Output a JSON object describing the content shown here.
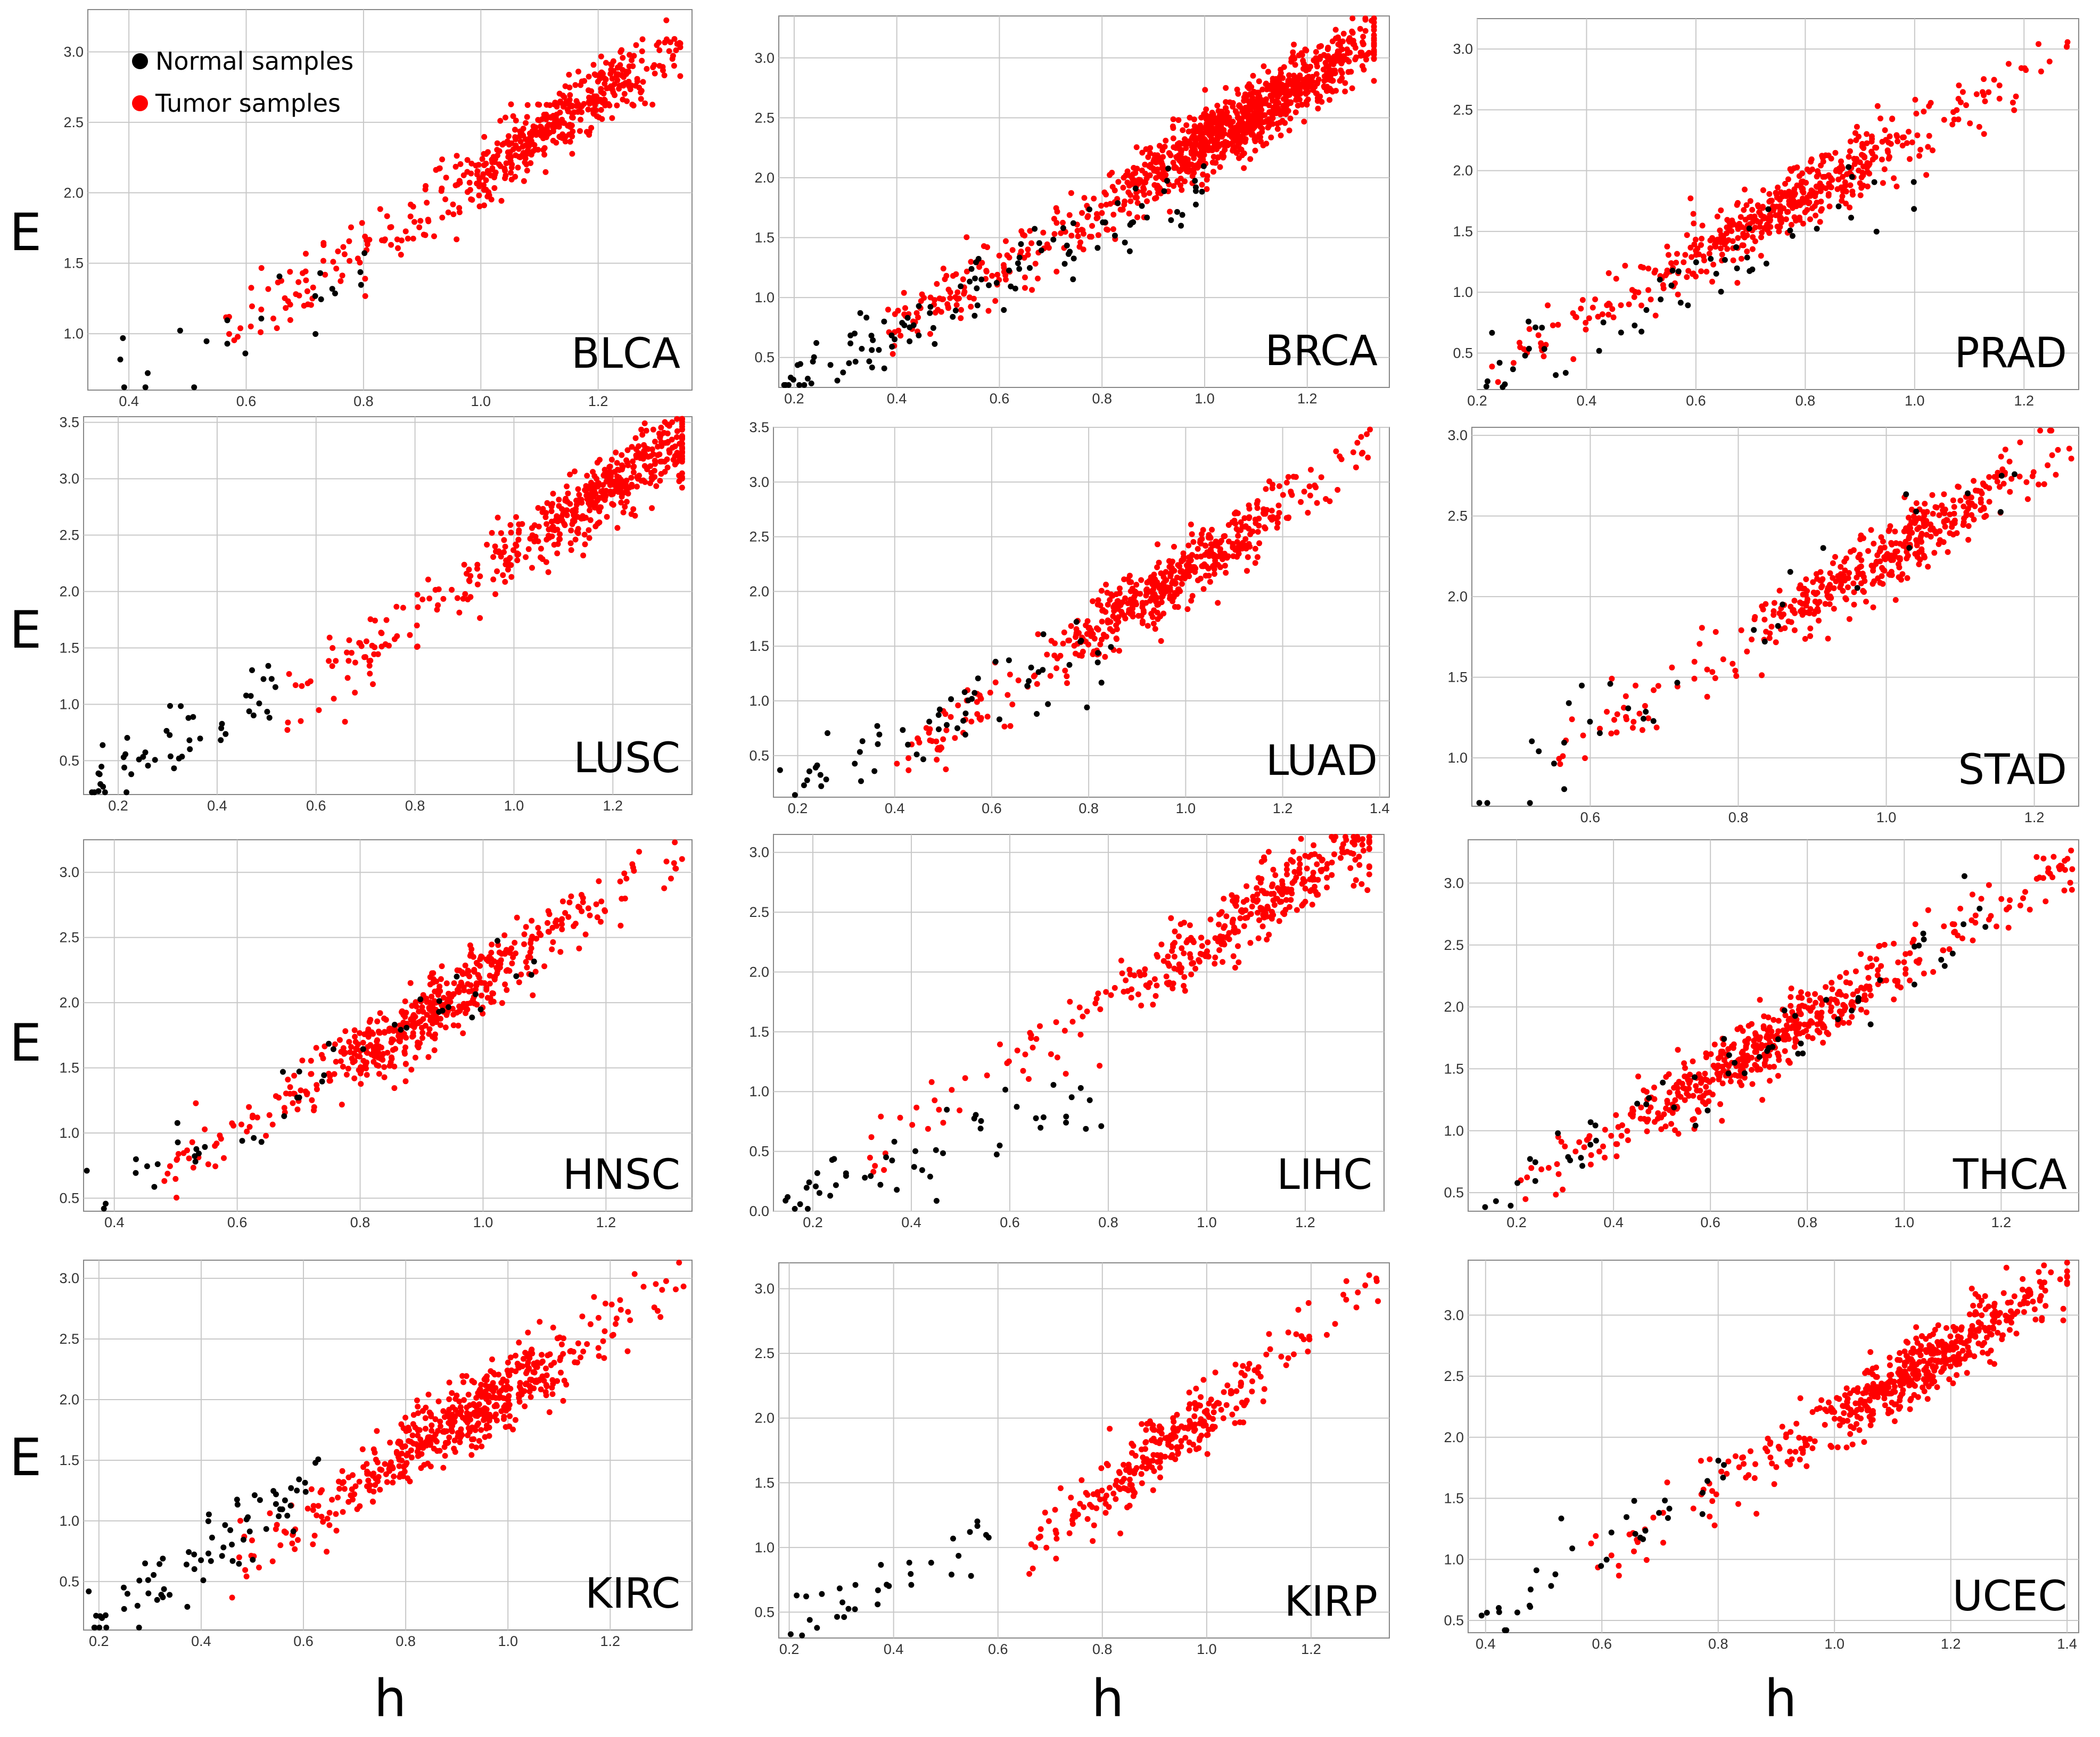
{
  "figure": {
    "row_axis_label": "E",
    "col_axis_label": "h",
    "colors": {
      "normal": "#000000",
      "tumor": "#ff0000",
      "grid": "#c8c8c8",
      "frame": "#888888"
    },
    "legend": [
      {
        "label": "Normal samples",
        "color": "#000000"
      },
      {
        "label": "Tumor samples",
        "color": "#ff0000"
      }
    ]
  },
  "chart_data": [
    {
      "type": "scatter",
      "title": "BLCA",
      "xlabel": "h",
      "ylabel": "E",
      "xlim": [
        0.33,
        1.36
      ],
      "ylim": [
        0.6,
        3.3
      ],
      "xticks": [
        "0.4",
        "0.6",
        "0.8",
        "1.0",
        "1.2"
      ],
      "yticks": [
        "1.0",
        "1.5",
        "2.0",
        "2.5",
        "3.0"
      ],
      "normal": {
        "x0": 0.35,
        "x1": 0.82,
        "y0": 0.65,
        "y1": 1.45,
        "n": 22
      },
      "tumor": {
        "x0": 0.56,
        "x1": 1.34,
        "y0": 1.0,
        "y1": 3.05,
        "n": 520,
        "peak": 1.12
      }
    },
    {
      "type": "scatter",
      "title": "BRCA",
      "xlabel": "h",
      "ylabel": "E",
      "xlim": [
        0.17,
        1.36
      ],
      "ylim": [
        0.25,
        3.35
      ],
      "xticks": [
        "0.2",
        "0.4",
        "0.6",
        "0.8",
        "1.0",
        "1.2"
      ],
      "yticks": [
        "0.5",
        "1.0",
        "1.5",
        "2.0",
        "2.5",
        "3.0"
      ],
      "normal": {
        "x0": 0.18,
        "x1": 1.0,
        "y0": 0.3,
        "y1": 2.0,
        "n": 110
      },
      "tumor": {
        "x0": 0.38,
        "x1": 1.33,
        "y0": 0.7,
        "y1": 3.15,
        "n": 1100,
        "peak": 1.08
      }
    },
    {
      "type": "scatter",
      "title": "PRAD",
      "xlabel": "h",
      "ylabel": "E",
      "xlim": [
        0.2,
        1.3
      ],
      "ylim": [
        0.2,
        3.25
      ],
      "xticks": [
        "0.2",
        "0.4",
        "0.6",
        "0.8",
        "1.0",
        "1.2"
      ],
      "yticks": [
        "0.5",
        "1.0",
        "1.5",
        "2.0",
        "2.5",
        "3.0"
      ],
      "normal": {
        "x0": 0.2,
        "x1": 1.0,
        "y0": 0.3,
        "y1": 1.95,
        "n": 52
      },
      "tumor": {
        "x0": 0.22,
        "x1": 1.28,
        "y0": 0.35,
        "y1": 3.0,
        "n": 500,
        "peak": 0.75
      }
    },
    {
      "type": "scatter",
      "title": "LUSC",
      "xlabel": "h",
      "ylabel": "E",
      "xlim": [
        0.13,
        1.36
      ],
      "ylim": [
        0.2,
        3.55
      ],
      "xticks": [
        "0.2",
        "0.4",
        "0.6",
        "0.8",
        "1.0",
        "1.2"
      ],
      "yticks": [
        "0.5",
        "1.0",
        "1.5",
        "2.0",
        "2.5",
        "3.0",
        "3.5"
      ],
      "normal": {
        "x0": 0.14,
        "x1": 0.52,
        "y0": 0.25,
        "y1": 1.05,
        "n": 50
      },
      "tumor": {
        "x0": 0.5,
        "x1": 1.34,
        "y0": 0.9,
        "y1": 3.35,
        "n": 500,
        "peak": 1.18
      }
    },
    {
      "type": "scatter",
      "title": "LUAD",
      "xlabel": "h",
      "ylabel": "E",
      "xlim": [
        0.15,
        1.42
      ],
      "ylim": [
        0.12,
        3.5
      ],
      "xticks": [
        "0.2",
        "0.4",
        "0.6",
        "0.8",
        "1.0",
        "1.2",
        "1.4"
      ],
      "yticks": [
        "0.5",
        "1.0",
        "1.5",
        "2.0",
        "2.5",
        "3.0",
        "3.5"
      ],
      "normal": {
        "x0": 0.16,
        "x1": 0.9,
        "y0": 0.2,
        "y1": 1.55,
        "n": 58
      },
      "tumor": {
        "x0": 0.4,
        "x1": 1.38,
        "y0": 0.45,
        "y1": 3.3,
        "n": 520,
        "peak": 0.98
      }
    },
    {
      "type": "scatter",
      "title": "STAD",
      "xlabel": "h",
      "ylabel": "E",
      "xlim": [
        0.44,
        1.26
      ],
      "ylim": [
        0.7,
        3.05
      ],
      "xticks": [
        "0.6",
        "0.8",
        "1.0",
        "1.2"
      ],
      "yticks": [
        "1.0",
        "1.5",
        "2.0",
        "2.5",
        "3.0"
      ],
      "normal": {
        "x0": 0.45,
        "x1": 1.18,
        "y0": 0.75,
        "y1": 2.75,
        "n": 32
      },
      "tumor": {
        "x0": 0.55,
        "x1": 1.25,
        "y0": 1.0,
        "y1": 2.95,
        "n": 420,
        "peak": 1.0
      }
    },
    {
      "type": "scatter",
      "title": "HNSC",
      "xlabel": "h",
      "ylabel": "E",
      "xlim": [
        0.35,
        1.34
      ],
      "ylim": [
        0.4,
        3.25
      ],
      "xticks": [
        "0.4",
        "0.6",
        "0.8",
        "1.0",
        "1.2"
      ],
      "yticks": [
        "0.5",
        "1.0",
        "1.5",
        "2.0",
        "2.5",
        "3.0"
      ],
      "normal": {
        "x0": 0.35,
        "x1": 1.1,
        "y0": 0.45,
        "y1": 2.4,
        "n": 44
      },
      "tumor": {
        "x0": 0.48,
        "x1": 1.33,
        "y0": 0.65,
        "y1": 3.15,
        "n": 520,
        "peak": 0.92
      }
    },
    {
      "type": "scatter",
      "title": "LIHC",
      "xlabel": "h",
      "ylabel": "E",
      "xlim": [
        0.12,
        1.36
      ],
      "ylim": [
        0.0,
        3.15
      ],
      "xticks": [
        "0.2",
        "0.4",
        "0.6",
        "0.8",
        "1.0",
        "1.2"
      ],
      "yticks": [
        "0.0",
        "0.5",
        "1.0",
        "1.5",
        "2.0",
        "2.5",
        "3.0"
      ],
      "normal": {
        "x0": 0.14,
        "x1": 0.8,
        "y0": 0.05,
        "y1": 1.05,
        "n": 50
      },
      "tumor": {
        "x0": 0.3,
        "x1": 1.33,
        "y0": 0.5,
        "y1": 3.1,
        "n": 370,
        "peak": 1.1
      }
    },
    {
      "type": "scatter",
      "title": "THCA",
      "xlabel": "h",
      "ylabel": "E",
      "xlim": [
        0.1,
        1.36
      ],
      "ylim": [
        0.35,
        3.35
      ],
      "xticks": [
        "0.2",
        "0.4",
        "0.6",
        "0.8",
        "1.0",
        "1.2"
      ],
      "yticks": [
        "0.5",
        "1.0",
        "1.5",
        "2.0",
        "2.5",
        "3.0"
      ],
      "normal": {
        "x0": 0.12,
        "x1": 1.18,
        "y0": 0.4,
        "y1": 2.7,
        "n": 58
      },
      "tumor": {
        "x0": 0.2,
        "x1": 1.35,
        "y0": 0.5,
        "y1": 3.2,
        "n": 510,
        "peak": 0.7
      }
    },
    {
      "type": "scatter",
      "title": "KIRC",
      "xlabel": "h",
      "ylabel": "E",
      "xlim": [
        0.17,
        1.36
      ],
      "ylim": [
        0.1,
        3.15
      ],
      "xticks": [
        "0.2",
        "0.4",
        "0.6",
        "0.8",
        "1.0",
        "1.2"
      ],
      "yticks": [
        "0.5",
        "1.0",
        "1.5",
        "2.0",
        "2.5",
        "3.0"
      ],
      "normal": {
        "x0": 0.18,
        "x1": 0.63,
        "y0": 0.1,
        "y1": 1.4,
        "n": 72
      },
      "tumor": {
        "x0": 0.46,
        "x1": 1.35,
        "y0": 0.6,
        "y1": 3.05,
        "n": 530,
        "peak": 0.92
      }
    },
    {
      "type": "scatter",
      "title": "KIRP",
      "xlabel": "h",
      "ylabel": "E",
      "xlim": [
        0.18,
        1.35
      ],
      "ylim": [
        0.3,
        3.2
      ],
      "xticks": [
        "0.2",
        "0.4",
        "0.6",
        "0.8",
        "1.0",
        "1.2"
      ],
      "yticks": [
        "0.5",
        "1.0",
        "1.5",
        "2.0",
        "2.5",
        "3.0"
      ],
      "normal": {
        "x0": 0.2,
        "x1": 0.62,
        "y0": 0.35,
        "y1": 1.25,
        "n": 32
      },
      "tumor": {
        "x0": 0.66,
        "x1": 1.33,
        "y0": 1.0,
        "y1": 3.05,
        "n": 290,
        "peak": 0.92
      }
    },
    {
      "type": "scatter",
      "title": "UCEC",
      "xlabel": "h",
      "ylabel": "E",
      "xlim": [
        0.37,
        1.42
      ],
      "ylim": [
        0.4,
        3.45
      ],
      "xticks": [
        "0.4",
        "0.6",
        "0.8",
        "1.0",
        "1.2",
        "1.4"
      ],
      "yticks": [
        "0.5",
        "1.0",
        "1.5",
        "2.0",
        "2.5",
        "3.0"
      ],
      "normal": {
        "x0": 0.38,
        "x1": 0.82,
        "y0": 0.45,
        "y1": 1.7,
        "n": 34
      },
      "tumor": {
        "x0": 0.58,
        "x1": 1.4,
        "y0": 0.95,
        "y1": 3.3,
        "n": 540,
        "peak": 1.15
      }
    }
  ]
}
